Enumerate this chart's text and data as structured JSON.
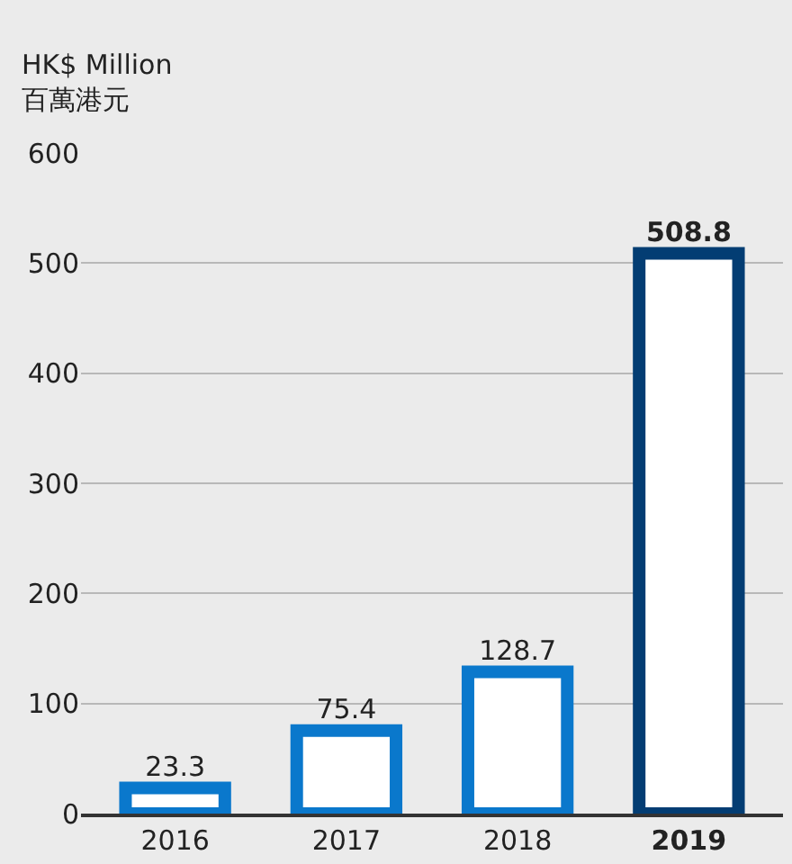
{
  "chart_data": {
    "type": "bar",
    "ylabel": "HK$ Million\n百萬港元",
    "categories": [
      "2016",
      "2017",
      "2018",
      "2019"
    ],
    "values": [
      23.3,
      75.4,
      128.7,
      508.8
    ],
    "colors": [
      "#0a78cc",
      "#0a78cc",
      "#0a78cc",
      "#033d73"
    ],
    "ylim": [
      0,
      600
    ],
    "yticks": [
      0,
      100,
      200,
      300,
      400,
      500,
      600
    ],
    "grid": "y",
    "data_labels": true,
    "legend": false
  }
}
